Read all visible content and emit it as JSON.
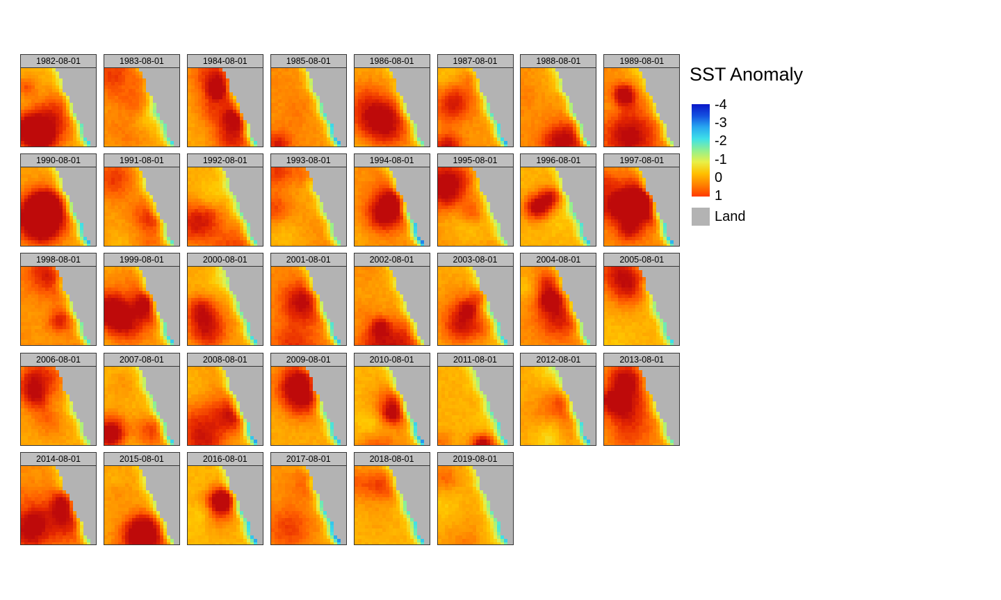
{
  "chart_data": {
    "type": "heatmap",
    "facet_labels": [
      "1982-08-01",
      "1983-08-01",
      "1984-08-01",
      "1985-08-01",
      "1986-08-01",
      "1987-08-01",
      "1988-08-01",
      "1989-08-01",
      "1990-08-01",
      "1991-08-01",
      "1992-08-01",
      "1993-08-01",
      "1994-08-01",
      "1995-08-01",
      "1996-08-01",
      "1997-08-01",
      "1998-08-01",
      "1999-08-01",
      "2000-08-01",
      "2001-08-01",
      "2002-08-01",
      "2003-08-01",
      "2004-08-01",
      "2005-08-01",
      "2006-08-01",
      "2007-08-01",
      "2008-08-01",
      "2009-08-01",
      "2010-08-01",
      "2011-08-01",
      "2012-08-01",
      "2013-08-01",
      "2014-08-01",
      "2015-08-01",
      "2016-08-01",
      "2017-08-01",
      "2018-08-01",
      "2019-08-01"
    ],
    "facet_columns": 8,
    "legend": {
      "title": "SST Anomaly",
      "tick_labels": [
        "-4",
        "-3",
        "-2",
        "-1",
        "0",
        "1"
      ],
      "land_label": "Land",
      "land_color": "#b3b3b3",
      "scale_min": -4,
      "scale_max": 1,
      "scale_colors": [
        "#0a1fd0",
        "#1e7de8",
        "#36d8f0",
        "#8ef29a",
        "#f3f04e",
        "#ffb000",
        "#ff5a00",
        "#e01800"
      ]
    },
    "grid": false,
    "legend_position": "right"
  }
}
